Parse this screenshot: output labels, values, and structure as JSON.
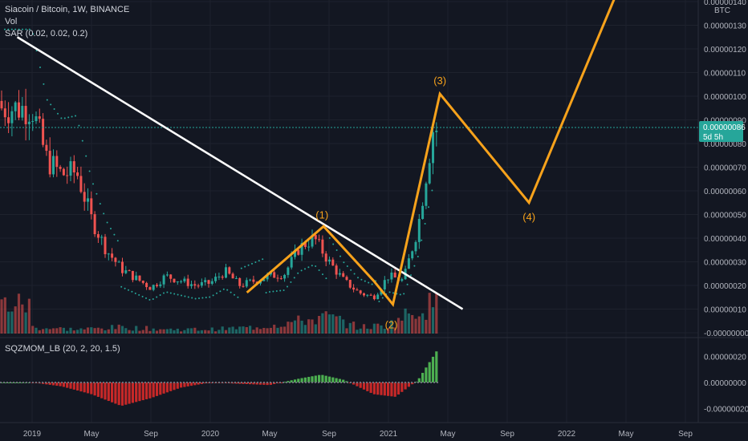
{
  "header": {
    "title": "Siacoin / Bitcoin, 1W, BINANCE",
    "vol_label": "Vol",
    "sar_label": "SAR (0.02, 0.02, 0.2)"
  },
  "indicator": {
    "label": "SQZMOM_LB (20, 2, 20, 1.5)"
  },
  "price_axis": {
    "unit": "BTC",
    "ticks": [
      "0.00000140",
      "0.00000130",
      "0.00000120",
      "0.00000110",
      "0.00000100",
      "0.00000090",
      "0.00000080",
      "0.00000070",
      "0.00000060",
      "0.00000050",
      "0.00000040",
      "0.00000030",
      "0.00000020",
      "0.00000010",
      "-0.00000000"
    ],
    "last_price": "0.00000086",
    "countdown": "5d 5h"
  },
  "indicator_axis": {
    "ticks": [
      "0.00000020",
      "0.00000000",
      "-0.00000020"
    ]
  },
  "time_axis": {
    "labels": [
      "2019",
      "May",
      "Sep",
      "2020",
      "May",
      "Sep",
      "2021",
      "May",
      "Sep",
      "2022",
      "May",
      "Sep"
    ]
  },
  "wave_labels": [
    "(1)",
    "(2)",
    "(3)",
    "(4)"
  ],
  "colors": {
    "background": "#131722",
    "up": "#26a69a",
    "down": "#ef5350",
    "wave": "#f7a21b",
    "trendline": "#ffffff",
    "momentum_up": "#4caf50",
    "momentum_down": "#c62828",
    "price_badge": "#26a69a"
  },
  "chart_data": {
    "type": "candlestick",
    "title": "Siacoin / Bitcoin, 1W, BINANCE",
    "ylim": [
      -2e-08,
      1.41e-06
    ],
    "price_series": [
      [
        "2019-01-01",
        9.5e-07
      ],
      [
        "2019-02-01",
        7.3e-07
      ],
      [
        "2019-03-01",
        6.7e-07
      ],
      [
        "2019-04-01",
        6.8e-07
      ],
      [
        "2019-05-01",
        4.8e-07
      ],
      [
        "2019-06-01",
        3.5e-07
      ],
      [
        "2019-07-01",
        2.7e-07
      ],
      [
        "2019-08-01",
        2.3e-07
      ],
      [
        "2019-09-01",
        1.9e-07
      ],
      [
        "2019-10-01",
        2.4e-07
      ],
      [
        "2019-11-01",
        2.2e-07
      ],
      [
        "2019-12-01",
        2e-07
      ],
      [
        "2020-01-01",
        2.1e-07
      ],
      [
        "2020-02-01",
        2.6e-07
      ],
      [
        "2020-03-01",
        2e-07
      ],
      [
        "2020-04-01",
        2.2e-07
      ],
      [
        "2020-05-01",
        2.4e-07
      ],
      [
        "2020-06-01",
        2.5e-07
      ],
      [
        "2020-07-01",
        3.6e-07
      ],
      [
        "2020-08-01",
        4e-07
      ],
      [
        "2020-09-01",
        3e-07
      ],
      [
        "2020-10-01",
        2.2e-07
      ],
      [
        "2020-11-01",
        1.7e-07
      ],
      [
        "2020-12-01",
        1.5e-07
      ],
      [
        "2021-01-01",
        2.4e-07
      ],
      [
        "2021-02-01",
        2.2e-07
      ],
      [
        "2021-03-01",
        4.5e-07
      ],
      [
        "2021-04-01",
        8.6e-07
      ]
    ],
    "volume_series": [
      [
        "2019-01-01",
        3
      ],
      [
        "2019-04-01",
        2
      ],
      [
        "2019-07-01",
        3
      ],
      [
        "2019-10-01",
        2
      ],
      [
        "2020-01-01",
        2
      ],
      [
        "2020-04-01",
        3
      ],
      [
        "2020-07-01",
        6
      ],
      [
        "2020-09-01",
        8
      ],
      [
        "2020-11-01",
        3
      ],
      [
        "2021-01-01",
        4
      ],
      [
        "2021-03-01",
        12
      ],
      [
        "2021-04-01",
        14
      ]
    ],
    "parabolic_sar": {
      "params": [
        0.02,
        0.02,
        0.2
      ]
    },
    "trendline": [
      [
        "2018-12-01",
        1.25e-06
      ],
      [
        "2021-06-01",
        1e-07
      ]
    ],
    "elliott_wave": [
      {
        "label": "",
        "date": "2020-03-15",
        "price": 1.7e-07
      },
      {
        "label": "(1)",
        "date": "2020-08-20",
        "price": 4.5e-07
      },
      {
        "label": "",
        "date": "2020-12-01",
        "price": 2.2e-07
      },
      {
        "label": "(2)",
        "date": "2021-01-10",
        "price": 1.2e-07
      },
      {
        "label": "(3)",
        "date": "2021-04-15",
        "price": 1.01e-06
      },
      {
        "label": "(4)",
        "date": "2021-10-15",
        "price": 5.5e-07
      },
      {
        "label": "",
        "date": "2022-04-15",
        "price": 1.45e-06
      }
    ],
    "squeeze_momentum": {
      "ylim": [
        -3e-07,
        3e-07
      ],
      "series": [
        [
          "2019-01-01",
          0.0
        ],
        [
          "2019-03-01",
          -3e-08
        ],
        [
          "2019-05-01",
          -9e-08
        ],
        [
          "2019-07-01",
          -1.8e-07
        ],
        [
          "2019-09-01",
          -1.2e-07
        ],
        [
          "2019-11-01",
          -4e-08
        ],
        [
          "2020-01-01",
          0.0
        ],
        [
          "2020-03-01",
          -1e-08
        ],
        [
          "2020-05-01",
          -2e-08
        ],
        [
          "2020-07-01",
          3e-08
        ],
        [
          "2020-08-15",
          6e-08
        ],
        [
          "2020-10-01",
          2e-08
        ],
        [
          "2020-12-01",
          -9e-08
        ],
        [
          "2021-01-15",
          -1.1e-07
        ],
        [
          "2021-03-01",
          2e-08
        ],
        [
          "2021-04-15",
          2.8e-07
        ]
      ]
    }
  }
}
